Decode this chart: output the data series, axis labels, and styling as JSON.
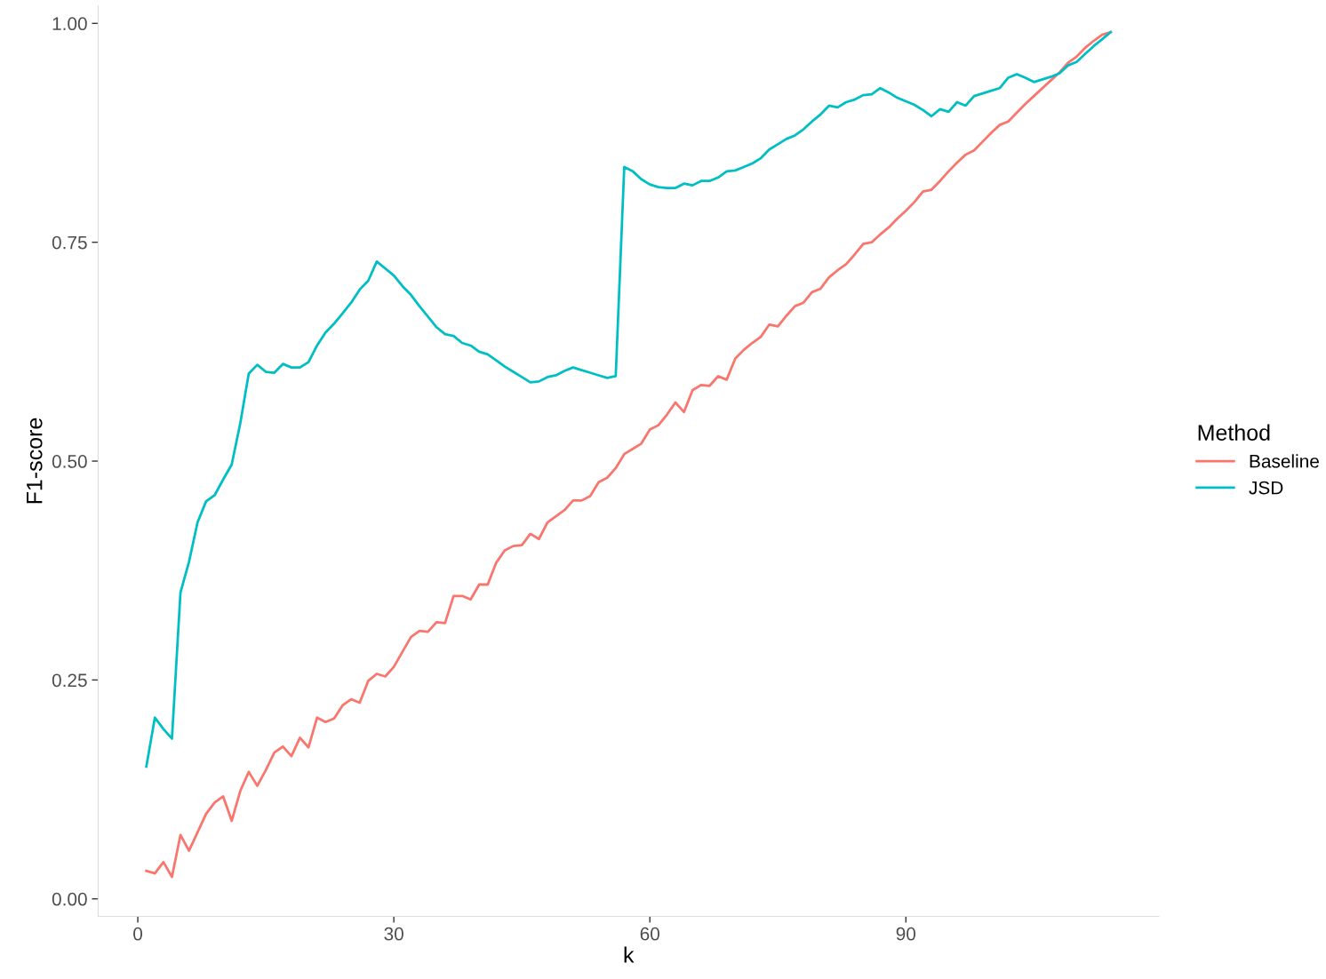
{
  "chart_data": {
    "type": "line",
    "xlabel": "k",
    "ylabel": "F1-score",
    "legend_title": "Method",
    "legend": "right",
    "grid": false,
    "marker": "none",
    "line_style": "solid",
    "xlim": [
      -4.65,
      119.65
    ],
    "ylim": [
      -0.02,
      1.02
    ],
    "xticks": [
      0,
      30,
      60,
      90
    ],
    "yticks": [
      {
        "value": 0,
        "label": "0.00"
      },
      {
        "value": 0.25,
        "label": "0.25"
      },
      {
        "value": 0.5,
        "label": "0.50"
      },
      {
        "value": 0.75,
        "label": "0.75"
      },
      {
        "value": 1,
        "label": "1.00"
      }
    ],
    "x": [
      1,
      2,
      3,
      4,
      5,
      6,
      7,
      8,
      9,
      10,
      11,
      12,
      13,
      14,
      15,
      16,
      17,
      18,
      19,
      20,
      21,
      22,
      23,
      24,
      25,
      26,
      27,
      28,
      29,
      30,
      31,
      32,
      33,
      34,
      35,
      36,
      37,
      38,
      39,
      40,
      41,
      42,
      43,
      44,
      45,
      46,
      47,
      48,
      49,
      50,
      51,
      52,
      53,
      54,
      55,
      56,
      57,
      58,
      59,
      60,
      61,
      62,
      63,
      64,
      65,
      66,
      67,
      68,
      69,
      70,
      71,
      72,
      73,
      74,
      75,
      76,
      77,
      78,
      79,
      80,
      81,
      82,
      83,
      84,
      85,
      86,
      87,
      88,
      89,
      90,
      91,
      92,
      93,
      94,
      95,
      96,
      97,
      98,
      99,
      100,
      101,
      102,
      103,
      104,
      105,
      106,
      107,
      108,
      109,
      110,
      111,
      112,
      113,
      114
    ],
    "series": [
      {
        "name": "Baseline",
        "color": "#f8766d",
        "values": [
          0.032,
          0.029,
          0.042,
          0.025,
          0.073,
          0.055,
          0.076,
          0.097,
          0.11,
          0.117,
          0.089,
          0.123,
          0.145,
          0.129,
          0.147,
          0.167,
          0.174,
          0.163,
          0.184,
          0.173,
          0.207,
          0.202,
          0.206,
          0.221,
          0.228,
          0.224,
          0.249,
          0.257,
          0.254,
          0.265,
          0.282,
          0.299,
          0.306,
          0.305,
          0.316,
          0.315,
          0.346,
          0.346,
          0.342,
          0.359,
          0.359,
          0.384,
          0.398,
          0.403,
          0.404,
          0.417,
          0.411,
          0.43,
          0.437,
          0.444,
          0.455,
          0.455,
          0.46,
          0.476,
          0.481,
          0.492,
          0.508,
          0.514,
          0.52,
          0.536,
          0.541,
          0.553,
          0.567,
          0.556,
          0.581,
          0.587,
          0.586,
          0.597,
          0.593,
          0.617,
          0.627,
          0.635,
          0.642,
          0.656,
          0.654,
          0.666,
          0.677,
          0.681,
          0.693,
          0.697,
          0.71,
          0.718,
          0.725,
          0.736,
          0.748,
          0.75,
          0.759,
          0.767,
          0.777,
          0.786,
          0.796,
          0.808,
          0.81,
          0.82,
          0.831,
          0.841,
          0.85,
          0.855,
          0.865,
          0.875,
          0.884,
          0.888,
          0.898,
          0.908,
          0.917,
          0.926,
          0.935,
          0.944,
          0.955,
          0.962,
          0.972,
          0.98,
          0.987,
          0.99
        ]
      },
      {
        "name": "JSD",
        "color": "#00bfc4",
        "values": [
          0.151,
          0.207,
          0.194,
          0.183,
          0.35,
          0.385,
          0.43,
          0.454,
          0.461,
          0.479,
          0.496,
          0.543,
          0.6,
          0.61,
          0.602,
          0.601,
          0.611,
          0.607,
          0.607,
          0.613,
          0.632,
          0.647,
          0.657,
          0.669,
          0.681,
          0.696,
          0.706,
          0.728,
          0.72,
          0.712,
          0.7,
          0.69,
          0.677,
          0.665,
          0.653,
          0.645,
          0.643,
          0.635,
          0.632,
          0.625,
          0.622,
          0.615,
          0.608,
          0.602,
          0.596,
          0.59,
          0.591,
          0.596,
          0.598,
          0.603,
          0.607,
          0.604,
          0.601,
          0.598,
          0.595,
          0.597,
          0.836,
          0.831,
          0.822,
          0.816,
          0.813,
          0.812,
          0.812,
          0.817,
          0.815,
          0.82,
          0.82,
          0.824,
          0.831,
          0.832,
          0.836,
          0.84,
          0.846,
          0.856,
          0.862,
          0.868,
          0.872,
          0.879,
          0.888,
          0.896,
          0.906,
          0.904,
          0.91,
          0.913,
          0.918,
          0.919,
          0.926,
          0.921,
          0.915,
          0.911,
          0.907,
          0.901,
          0.894,
          0.902,
          0.899,
          0.91,
          0.906,
          0.917,
          0.92,
          0.923,
          0.926,
          0.938,
          0.942,
          0.938,
          0.933,
          0.936,
          0.939,
          0.943,
          0.952,
          0.956,
          0.965,
          0.974,
          0.982,
          0.99
        ]
      }
    ]
  }
}
